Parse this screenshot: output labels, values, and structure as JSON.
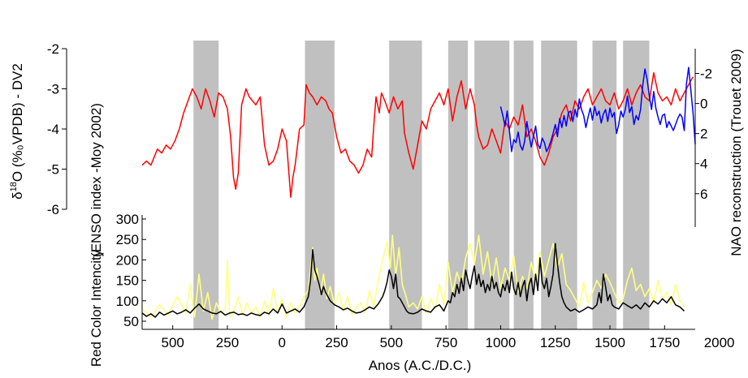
{
  "chart_data": {
    "type": "line",
    "x_axis": {
      "label": "Anos (A.C./D.C.)",
      "ticks": [
        "500",
        "250",
        "0",
        "250",
        "500",
        "750",
        "1000",
        "1250",
        "1500",
        "1750",
        "2000"
      ],
      "tick_values": [
        -500,
        -250,
        0,
        250,
        500,
        750,
        1000,
        1250,
        1500,
        1750,
        2000
      ],
      "range": [
        -640,
        1890
      ]
    },
    "y_axes": {
      "d18o": {
        "label_main": "δ",
        "label_sup": "18",
        "label_rest": "O (%₀VPDB) - DV2",
        "ticks": [
          "-2",
          "-3",
          "-4",
          "-5",
          "-6"
        ],
        "tick_values": [
          -2,
          -3,
          -4,
          -5,
          -6
        ],
        "range": [
          -6,
          -2
        ]
      },
      "enso": {
        "label": "(ENSO index -Moy 2002)",
        "ticks": [
          "300",
          "250",
          "200",
          "150",
          "100",
          "50"
        ],
        "tick_values": [
          300,
          250,
          200,
          150,
          100,
          50
        ],
        "range": [
          40,
          340
        ]
      },
      "red_color": {
        "label": "Red Color Intencity"
      },
      "nao": {
        "label": "NAO reconstruction (Trouet 2009)",
        "ticks": [
          "-2",
          "0",
          "2",
          "4",
          "6"
        ],
        "tick_values": [
          -2,
          0,
          2,
          4,
          6
        ],
        "range": [
          -3,
          7.2
        ],
        "inverted": true
      }
    },
    "shaded_bands": [
      [
        -405,
        -290
      ],
      [
        105,
        240
      ],
      [
        490,
        640
      ],
      [
        760,
        850
      ],
      [
        880,
        1040
      ],
      [
        1060,
        1150
      ],
      [
        1185,
        1350
      ],
      [
        1420,
        1530
      ],
      [
        1560,
        1680
      ]
    ],
    "series": [
      {
        "color": "#ff0000",
        "axis": "d18o",
        "x": [
          -640,
          -620,
          -600,
          -570,
          -550,
          -530,
          -510,
          -490,
          -470,
          -450,
          -430,
          -410,
          -390,
          -370,
          -350,
          -330,
          -310,
          -290,
          -270,
          -250,
          -235,
          -222,
          -212,
          -200,
          -185,
          -165,
          -150,
          -120,
          -100,
          -90,
          -80,
          -60,
          -40,
          -20,
          0,
          20,
          40,
          50,
          60,
          80,
          100,
          110,
          125,
          140,
          160,
          180,
          200,
          215,
          230,
          250,
          270,
          290,
          310,
          330,
          350,
          370,
          390,
          410,
          420,
          430,
          445,
          455,
          470,
          490,
          510,
          530,
          550,
          560,
          580,
          600,
          620,
          640,
          660,
          680,
          700,
          720,
          740,
          760,
          780,
          800,
          820,
          840,
          860,
          880,
          890,
          900,
          920,
          940,
          960,
          980,
          1000,
          1020,
          1040,
          1060,
          1080,
          1100,
          1120,
          1140,
          1160,
          1180,
          1200,
          1220,
          1240,
          1260,
          1280,
          1300,
          1320,
          1340,
          1360,
          1380,
          1400,
          1420,
          1440,
          1460,
          1480,
          1500,
          1520,
          1540,
          1560,
          1580,
          1600,
          1620,
          1640,
          1660,
          1680,
          1700,
          1720,
          1740,
          1760,
          1780,
          1800,
          1820,
          1840,
          1860,
          1880
        ],
        "values": [
          -4.9,
          -4.8,
          -4.9,
          -4.5,
          -4.6,
          -4.4,
          -4.5,
          -4.3,
          -4.0,
          -3.6,
          -3.3,
          -3.0,
          -3.2,
          -3.5,
          -3.0,
          -3.3,
          -3.7,
          -3.1,
          -3.2,
          -3.5,
          -4.2,
          -5.2,
          -5.5,
          -5.1,
          -3.4,
          -3.0,
          -3.2,
          -3.4,
          -3.2,
          -3.8,
          -4.4,
          -4.9,
          -4.8,
          -4.5,
          -4.0,
          -4.3,
          -5.7,
          -5.2,
          -4.9,
          -4.0,
          -3.9,
          -2.9,
          -3.1,
          -3.2,
          -3.4,
          -3.2,
          -3.3,
          -3.5,
          -3.6,
          -4.2,
          -4.6,
          -4.5,
          -4.8,
          -4.9,
          -5.1,
          -4.9,
          -4.5,
          -4.7,
          -3.9,
          -3.2,
          -3.6,
          -3.1,
          -3.3,
          -3.6,
          -3.2,
          -3.5,
          -3.3,
          -4.1,
          -4.6,
          -5.0,
          -4.4,
          -3.8,
          -4.0,
          -3.5,
          -3.3,
          -3.1,
          -3.4,
          -3.0,
          -3.8,
          -3.2,
          -2.8,
          -3.5,
          -3.0,
          -3.4,
          -3.9,
          -4.2,
          -4.5,
          -4.4,
          -4.0,
          -4.3,
          -4.6,
          -3.8,
          -4.0,
          -3.7,
          -3.9,
          -3.4,
          -4.2,
          -4.0,
          -4.3,
          -4.7,
          -4.9,
          -4.6,
          -4.2,
          -4.0,
          -3.6,
          -3.4,
          -3.8,
          -3.3,
          -3.5,
          -3.2,
          -3.0,
          -3.4,
          -3.2,
          -3.0,
          -3.3,
          -3.4,
          -3.1,
          -3.5,
          -3.3,
          -3.0,
          -3.4,
          -3.1,
          -2.9,
          -3.2,
          -3.3,
          -2.6,
          -3.1,
          -3.3,
          -3.2,
          -3.4,
          -3.0,
          -3.3,
          -3.1,
          -2.9,
          -2.7
        ]
      },
      {
        "color": "#0000ff",
        "axis": "nao",
        "x": [
          1000,
          1010,
          1020,
          1030,
          1040,
          1050,
          1060,
          1070,
          1080,
          1090,
          1100,
          1110,
          1120,
          1130,
          1140,
          1150,
          1160,
          1170,
          1180,
          1190,
          1200,
          1210,
          1220,
          1230,
          1240,
          1250,
          1260,
          1270,
          1280,
          1290,
          1300,
          1310,
          1320,
          1330,
          1340,
          1350,
          1360,
          1370,
          1380,
          1390,
          1400,
          1410,
          1420,
          1430,
          1440,
          1450,
          1460,
          1470,
          1480,
          1490,
          1500,
          1510,
          1520,
          1530,
          1540,
          1550,
          1560,
          1570,
          1580,
          1590,
          1600,
          1610,
          1620,
          1630,
          1640,
          1650,
          1660,
          1670,
          1680,
          1690,
          1700,
          1710,
          1720,
          1730,
          1740,
          1750,
          1760,
          1770,
          1780,
          1790,
          1800,
          1810,
          1820,
          1830,
          1840,
          1850,
          1860,
          1870,
          1880,
          1890
        ],
        "values": [
          0.2,
          0.8,
          1.5,
          0.5,
          1.8,
          3.2,
          2.4,
          2.6,
          1.9,
          2.8,
          3.1,
          2.5,
          1.2,
          2.1,
          2.9,
          2.2,
          1.5,
          2.7,
          3.0,
          2.3,
          2.6,
          3.2,
          2.9,
          2.5,
          2.0,
          1.4,
          2.2,
          1.0,
          1.6,
          0.8,
          1.5,
          0.6,
          0.5,
          1.2,
          0.4,
          0.9,
          -0.3,
          0.4,
          0.8,
          1.6,
          0.9,
          0.3,
          1.1,
          0.2,
          0.8,
          0.5,
          1.3,
          0.7,
          0.4,
          1.2,
          0.3,
          0.9,
          0.6,
          2.0,
          1.4,
          0.5,
          0.9,
          0.4,
          -0.5,
          0.6,
          0.2,
          1.4,
          0.8,
          1.1,
          0.4,
          -1.2,
          -2.3,
          -1.6,
          -0.5,
          0.4,
          -0.8,
          0.3,
          0.9,
          1.4,
          0.8,
          0.7,
          1.6,
          1.2,
          1.5,
          1.8,
          1.4,
          1.0,
          0.7,
          0.9,
          1.8,
          -1.3,
          -2.4,
          -0.9,
          0.6,
          2.7
        ]
      },
      {
        "color": "#ffff80",
        "axis": "enso",
        "x": [
          -640,
          -600,
          -560,
          -520,
          -480,
          -440,
          -420,
          -400,
          -380,
          -360,
          -340,
          -320,
          -300,
          -280,
          -260,
          -250,
          -240,
          -220,
          -200,
          -180,
          -160,
          -140,
          -120,
          -100,
          -80,
          -60,
          -40,
          -20,
          0,
          20,
          40,
          60,
          80,
          100,
          120,
          140,
          150,
          160,
          175,
          190,
          205,
          220,
          240,
          260,
          280,
          300,
          320,
          340,
          360,
          380,
          400,
          420,
          440,
          460,
          480,
          495,
          505,
          520,
          535,
          550,
          565,
          580,
          600,
          620,
          640,
          660,
          680,
          700,
          720,
          740,
          760,
          780,
          800,
          820,
          840,
          860,
          880,
          900,
          920,
          940,
          960,
          980,
          1000,
          1020,
          1040,
          1060,
          1080,
          1100,
          1120,
          1140,
          1160,
          1180,
          1200,
          1220,
          1240,
          1260,
          1280,
          1300,
          1320,
          1340,
          1360,
          1380,
          1400,
          1420,
          1440,
          1460,
          1480,
          1500,
          1520,
          1540,
          1560,
          1580,
          1600,
          1620,
          1640,
          1660,
          1680,
          1700,
          1720,
          1740,
          1760,
          1780,
          1800,
          1820,
          1840
        ],
        "values": [
          80,
          60,
          90,
          65,
          110,
          70,
          140,
          60,
          165,
          75,
          120,
          55,
          95,
          70,
          80,
          200,
          60,
          75,
          110,
          65,
          95,
          70,
          85,
          60,
          100,
          65,
          130,
          70,
          105,
          60,
          95,
          70,
          85,
          110,
          125,
          230,
          150,
          180,
          120,
          165,
          105,
          135,
          90,
          120,
          75,
          110,
          65,
          85,
          95,
          70,
          125,
          85,
          150,
          200,
          245,
          180,
          260,
          160,
          230,
          140,
          115,
          85,
          95,
          80,
          110,
          70,
          105,
          80,
          140,
          90,
          195,
          120,
          170,
          140,
          205,
          240,
          190,
          260,
          165,
          220,
          140,
          205,
          130,
          180,
          150,
          210,
          120,
          160,
          130,
          195,
          145,
          220,
          160,
          200,
          240,
          180,
          215,
          140,
          125,
          105,
          85,
          145,
          95,
          120,
          150,
          130,
          165,
          145,
          120,
          95,
          105,
          150,
          180,
          125,
          140,
          110,
          130,
          95,
          150,
          105,
          120,
          90,
          140,
          100,
          85
        ]
      },
      {
        "color": "#000000",
        "axis": "enso",
        "x": [
          -640,
          -620,
          -600,
          -580,
          -560,
          -540,
          -520,
          -500,
          -480,
          -460,
          -440,
          -420,
          -400,
          -380,
          -360,
          -340,
          -320,
          -300,
          -280,
          -260,
          -240,
          -220,
          -200,
          -180,
          -160,
          -140,
          -120,
          -100,
          -80,
          -60,
          -40,
          -20,
          0,
          20,
          40,
          60,
          80,
          100,
          120,
          130,
          140,
          150,
          160,
          170,
          180,
          190,
          200,
          210,
          220,
          240,
          260,
          280,
          300,
          320,
          340,
          360,
          380,
          400,
          420,
          440,
          460,
          470,
          480,
          490,
          500,
          510,
          520,
          530,
          540,
          550,
          560,
          570,
          580,
          600,
          620,
          640,
          660,
          680,
          700,
          720,
          740,
          760,
          770,
          780,
          790,
          800,
          810,
          820,
          830,
          840,
          850,
          860,
          870,
          880,
          890,
          900,
          910,
          920,
          930,
          940,
          950,
          960,
          970,
          980,
          990,
          1000,
          1010,
          1020,
          1030,
          1040,
          1050,
          1060,
          1070,
          1080,
          1090,
          1100,
          1110,
          1120,
          1130,
          1140,
          1150,
          1160,
          1170,
          1180,
          1190,
          1200,
          1210,
          1220,
          1230,
          1240,
          1250,
          1260,
          1270,
          1280,
          1290,
          1300,
          1320,
          1340,
          1360,
          1380,
          1400,
          1420,
          1440,
          1450,
          1460,
          1470,
          1480,
          1490,
          1500,
          1510,
          1520,
          1540,
          1560,
          1580,
          1600,
          1620,
          1640,
          1660,
          1680,
          1700,
          1720,
          1740,
          1760,
          1780,
          1800,
          1820,
          1840
        ],
        "values": [
          70,
          62,
          68,
          60,
          72,
          65,
          70,
          75,
          68,
          72,
          78,
          70,
          82,
          92,
          80,
          75,
          70,
          68,
          74,
          65,
          70,
          72,
          66,
          68,
          64,
          70,
          66,
          64,
          72,
          68,
          80,
          70,
          92,
          70,
          75,
          80,
          72,
          85,
          110,
          150,
          225,
          175,
          160,
          140,
          115,
          135,
          120,
          110,
          100,
          90,
          85,
          78,
          82,
          75,
          70,
          72,
          78,
          85,
          80,
          92,
          110,
          125,
          145,
          175,
          160,
          130,
          165,
          110,
          105,
          95,
          85,
          75,
          70,
          68,
          72,
          80,
          75,
          72,
          85,
          90,
          75,
          100,
          95,
          120,
          110,
          140,
          118,
          155,
          125,
          175,
          150,
          130,
          160,
          185,
          140,
          165,
          135,
          150,
          120,
          140,
          125,
          160,
          130,
          145,
          120,
          110,
          140,
          125,
          150,
          120,
          170,
          130,
          115,
          145,
          110,
          135,
          150,
          100,
          140,
          155,
          115,
          165,
          125,
          205,
          145,
          130,
          155,
          110,
          135,
          165,
          240,
          190,
          145,
          110,
          95,
          85,
          75,
          80,
          72,
          78,
          85,
          80,
          90,
          120,
          95,
          165,
          135,
          100,
          115,
          90,
          85,
          80,
          95,
          88,
          82,
          90,
          80,
          95,
          85,
          100,
          92,
          105,
          95,
          110,
          90,
          85,
          75
        ]
      }
    ]
  }
}
